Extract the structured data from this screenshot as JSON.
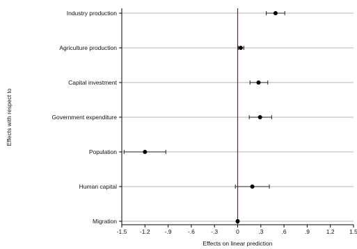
{
  "chart_data": {
    "type": "coefficient-plot",
    "title": "",
    "xlabel": "Effects on linear prediction",
    "ylabel": "Effects with respect to",
    "xlim": [
      -1.5,
      1.5
    ],
    "x_ticks": [
      "-1.5",
      "-1.2",
      "-.9",
      "-.6",
      "-.3",
      "0",
      ".3",
      ".6",
      ".9",
      "1.2",
      "1.5"
    ],
    "x_tick_values": [
      -1.5,
      -1.2,
      -0.9,
      -0.6,
      -0.3,
      0,
      0.3,
      0.6,
      0.9,
      1.2,
      1.5
    ],
    "reference_line": {
      "x": 0,
      "color": "#a3003c"
    },
    "grid": true,
    "marker_color": "#000000",
    "categories": [
      "Industry production",
      "Agriculture production",
      "Capital investment",
      "Government expenditure",
      "Population",
      "Human capital",
      "Migration"
    ],
    "series": [
      {
        "estimates": [
          0.49,
          0.04,
          0.27,
          0.29,
          -1.2,
          0.19,
          0.0
        ],
        "ci_low": [
          0.37,
          0.01,
          0.16,
          0.15,
          -1.47,
          -0.03,
          -0.01
        ],
        "ci_high": [
          0.61,
          0.08,
          0.39,
          0.44,
          -0.93,
          0.41,
          0.01
        ]
      }
    ]
  }
}
